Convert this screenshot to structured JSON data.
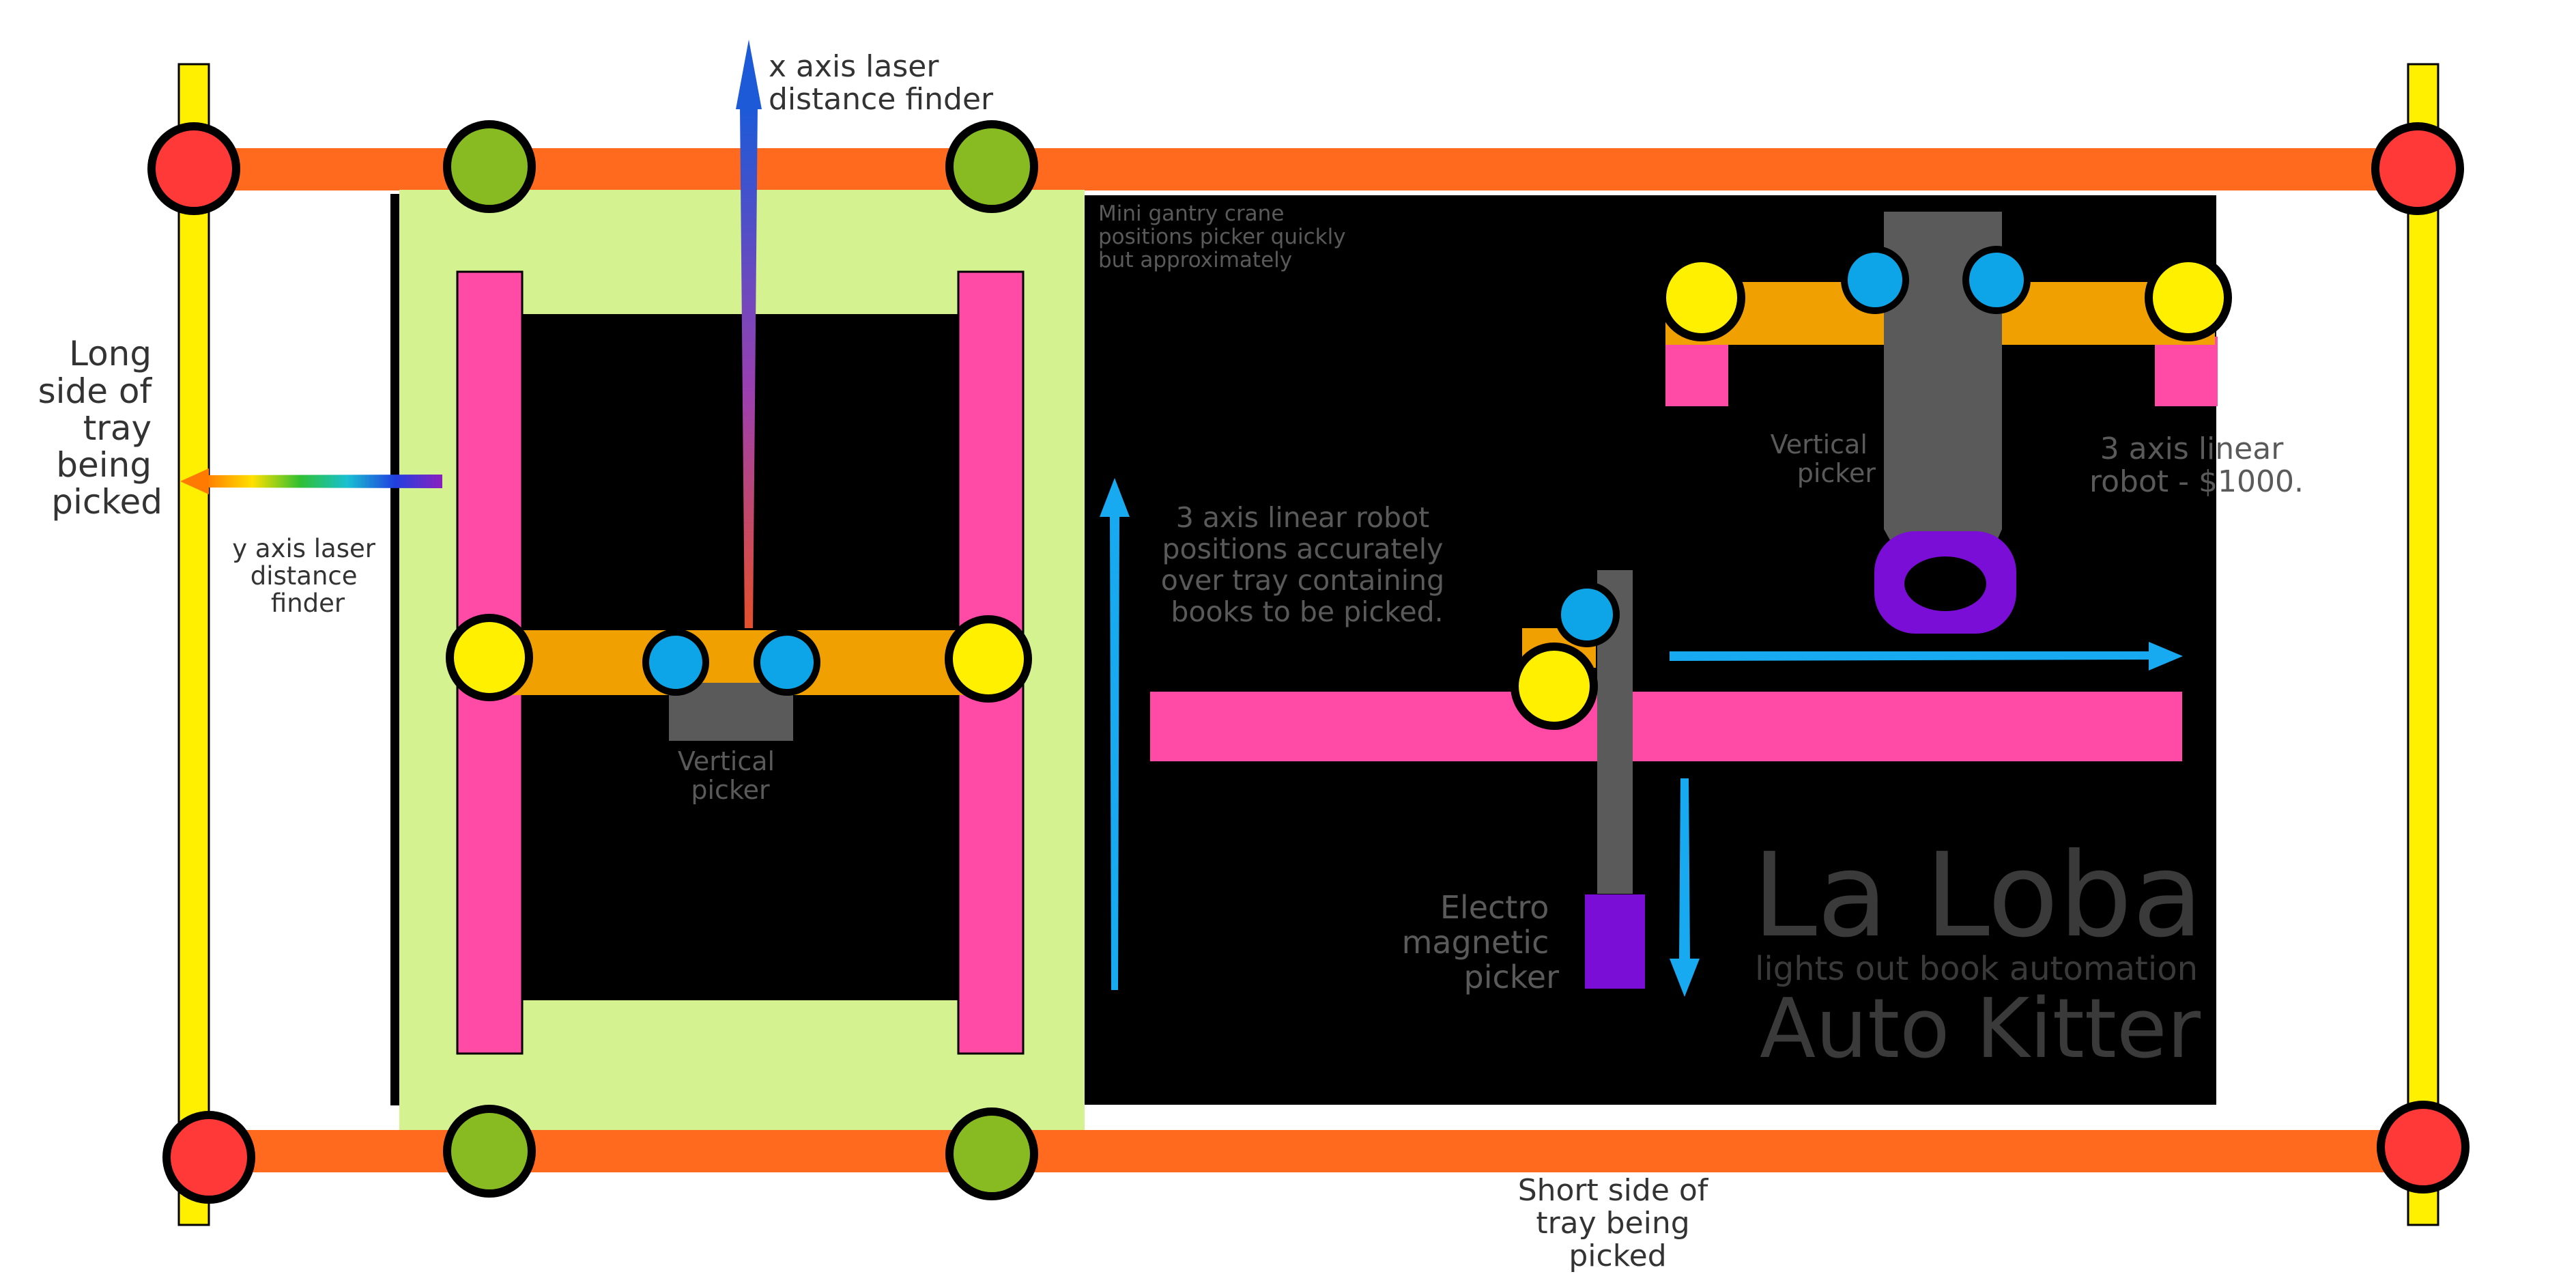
{
  "labels": {
    "x_laser": [
      "x axis laser",
      "distance finder"
    ],
    "y_laser": [
      "y axis laser",
      "distance",
      "finder"
    ],
    "long_side": [
      "Long",
      "side of",
      "tray",
      "being",
      "picked"
    ],
    "short_side": [
      "Short side of",
      "tray being",
      "picked"
    ],
    "gantry_note": [
      "Mini gantry crane",
      "positions picker quickly",
      "but approximately"
    ],
    "vertical_picker_left": [
      "Vertical",
      "picker"
    ],
    "vertical_picker_right": [
      "Vertical",
      "picker"
    ],
    "linear_robot_note": [
      "3 axis linear robot",
      "positions accurately",
      "over tray containing",
      "books to be picked."
    ],
    "linear_robot_price": [
      "3 axis linear",
      "robot - $1000."
    ],
    "electro_picker": [
      "Electro",
      "magnetic",
      "picker"
    ]
  },
  "brand": {
    "name": "La Loba",
    "tagline": "lights out book automation",
    "product": "Auto Kitter"
  },
  "colors": {
    "frame_rail": "#ff6a1f",
    "side_post": "#fff000",
    "corner_node": "#ff3838",
    "gantry_node": "#88bb22",
    "gantry_bg": "#d4f28f",
    "pink_rail": "#ff4aa6",
    "yellow_node": "#fff000",
    "blue_node": "#0ea5e8",
    "orange_bar": "#f0a000",
    "picker_gray": "#5a5a5a",
    "picker_purple": "#7a0ed6",
    "arrow_blue": "#18aaf0",
    "label_dark": "#333333",
    "label_gray": "#5a5a5a"
  }
}
